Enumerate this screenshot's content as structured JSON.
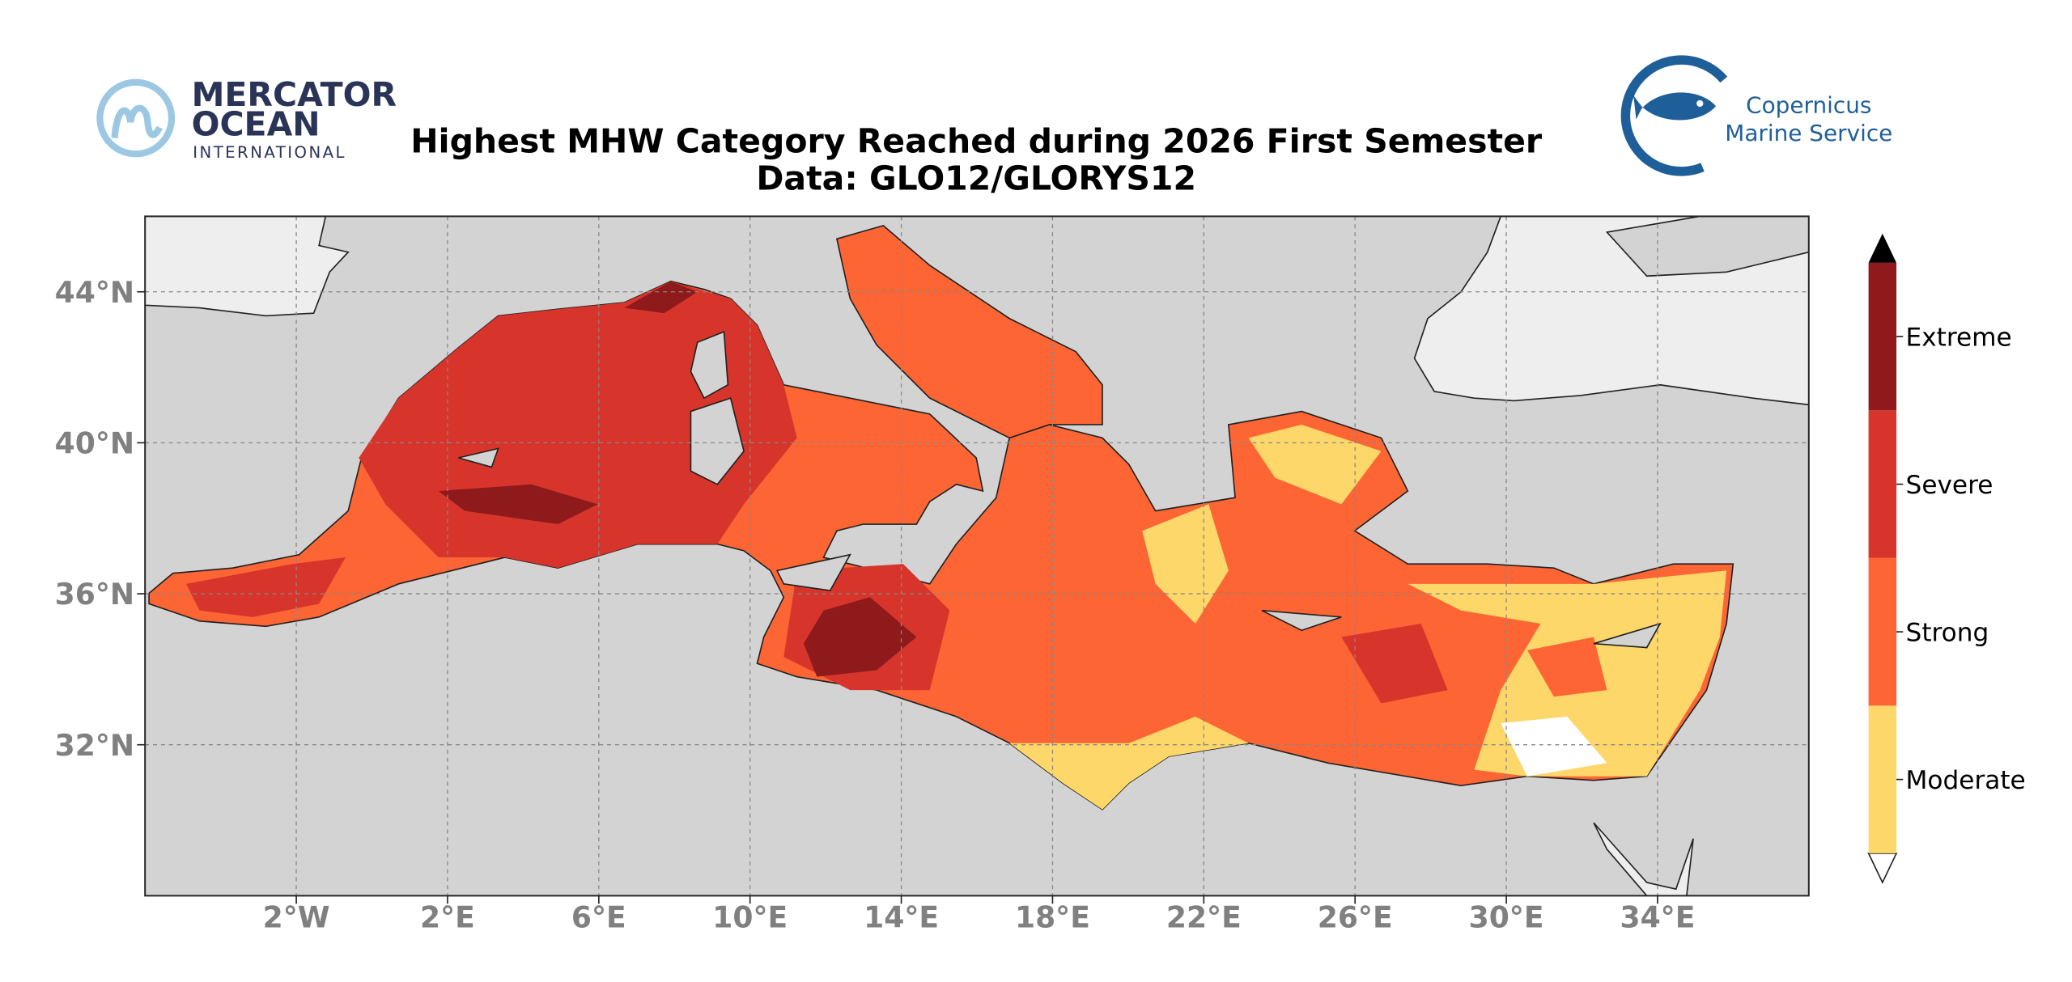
{
  "logos": {
    "mercator": [
      "MERCATOR",
      "OCEAN",
      "INTERNATIONAL"
    ],
    "copernicus": [
      "Copernicus",
      "Marine Service"
    ]
  },
  "title": "Highest MHW Category Reached during 2026 First Semester",
  "subtitle": "Data: GLO12/GLORYS12",
  "map": {
    "xlim": [
      -6,
      38
    ],
    "ylim": [
      28,
      46
    ],
    "grid": true,
    "xticks": [
      {
        "value": -2,
        "label": "2°W"
      },
      {
        "value": 2,
        "label": "2°E"
      },
      {
        "value": 6,
        "label": "6°E"
      },
      {
        "value": 10,
        "label": "10°E"
      },
      {
        "value": 14,
        "label": "14°E"
      },
      {
        "value": 18,
        "label": "18°E"
      },
      {
        "value": 22,
        "label": "22°E"
      },
      {
        "value": 26,
        "label": "26°E"
      },
      {
        "value": 30,
        "label": "30°E"
      },
      {
        "value": 34,
        "label": "34°E"
      }
    ],
    "yticks": [
      {
        "value": 32,
        "label": "32°N"
      },
      {
        "value": 36,
        "label": "36°N"
      },
      {
        "value": 40,
        "label": "40°N"
      },
      {
        "value": 44,
        "label": "44°N"
      }
    ]
  },
  "legend": {
    "categories": [
      {
        "name": "Moderate",
        "color": "#fdd76a"
      },
      {
        "name": "Strong",
        "color": "#fd6534"
      },
      {
        "name": "Severe",
        "color": "#d7352b"
      },
      {
        "name": "Extreme",
        "color": "#8e1a1b"
      }
    ]
  }
}
